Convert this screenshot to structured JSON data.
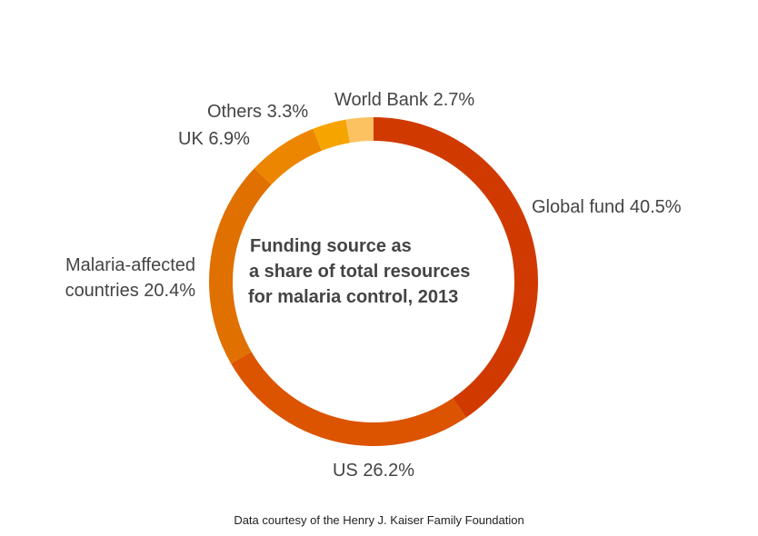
{
  "chart_data": {
    "type": "donut",
    "title": [
      "Funding source as",
      "a share of total resources",
      "for malaria control, 2013"
    ],
    "categories": [
      "Global fund",
      "US",
      "Malaria-affected countries",
      "UK",
      "Others",
      "World Bank"
    ],
    "values": [
      40.5,
      26.2,
      20.4,
      6.9,
      3.3,
      2.7
    ],
    "value_labels": [
      "40.5%",
      "26.2%",
      "20.4%",
      "6.9%",
      "3.3%",
      "2.7%"
    ],
    "colors": [
      "#d03a00",
      "#dc5400",
      "#e07000",
      "#ec8600",
      "#f6a400",
      "#fcc262"
    ],
    "source": "Data courtesy of the Henry J. Kaiser Family Foundation"
  }
}
